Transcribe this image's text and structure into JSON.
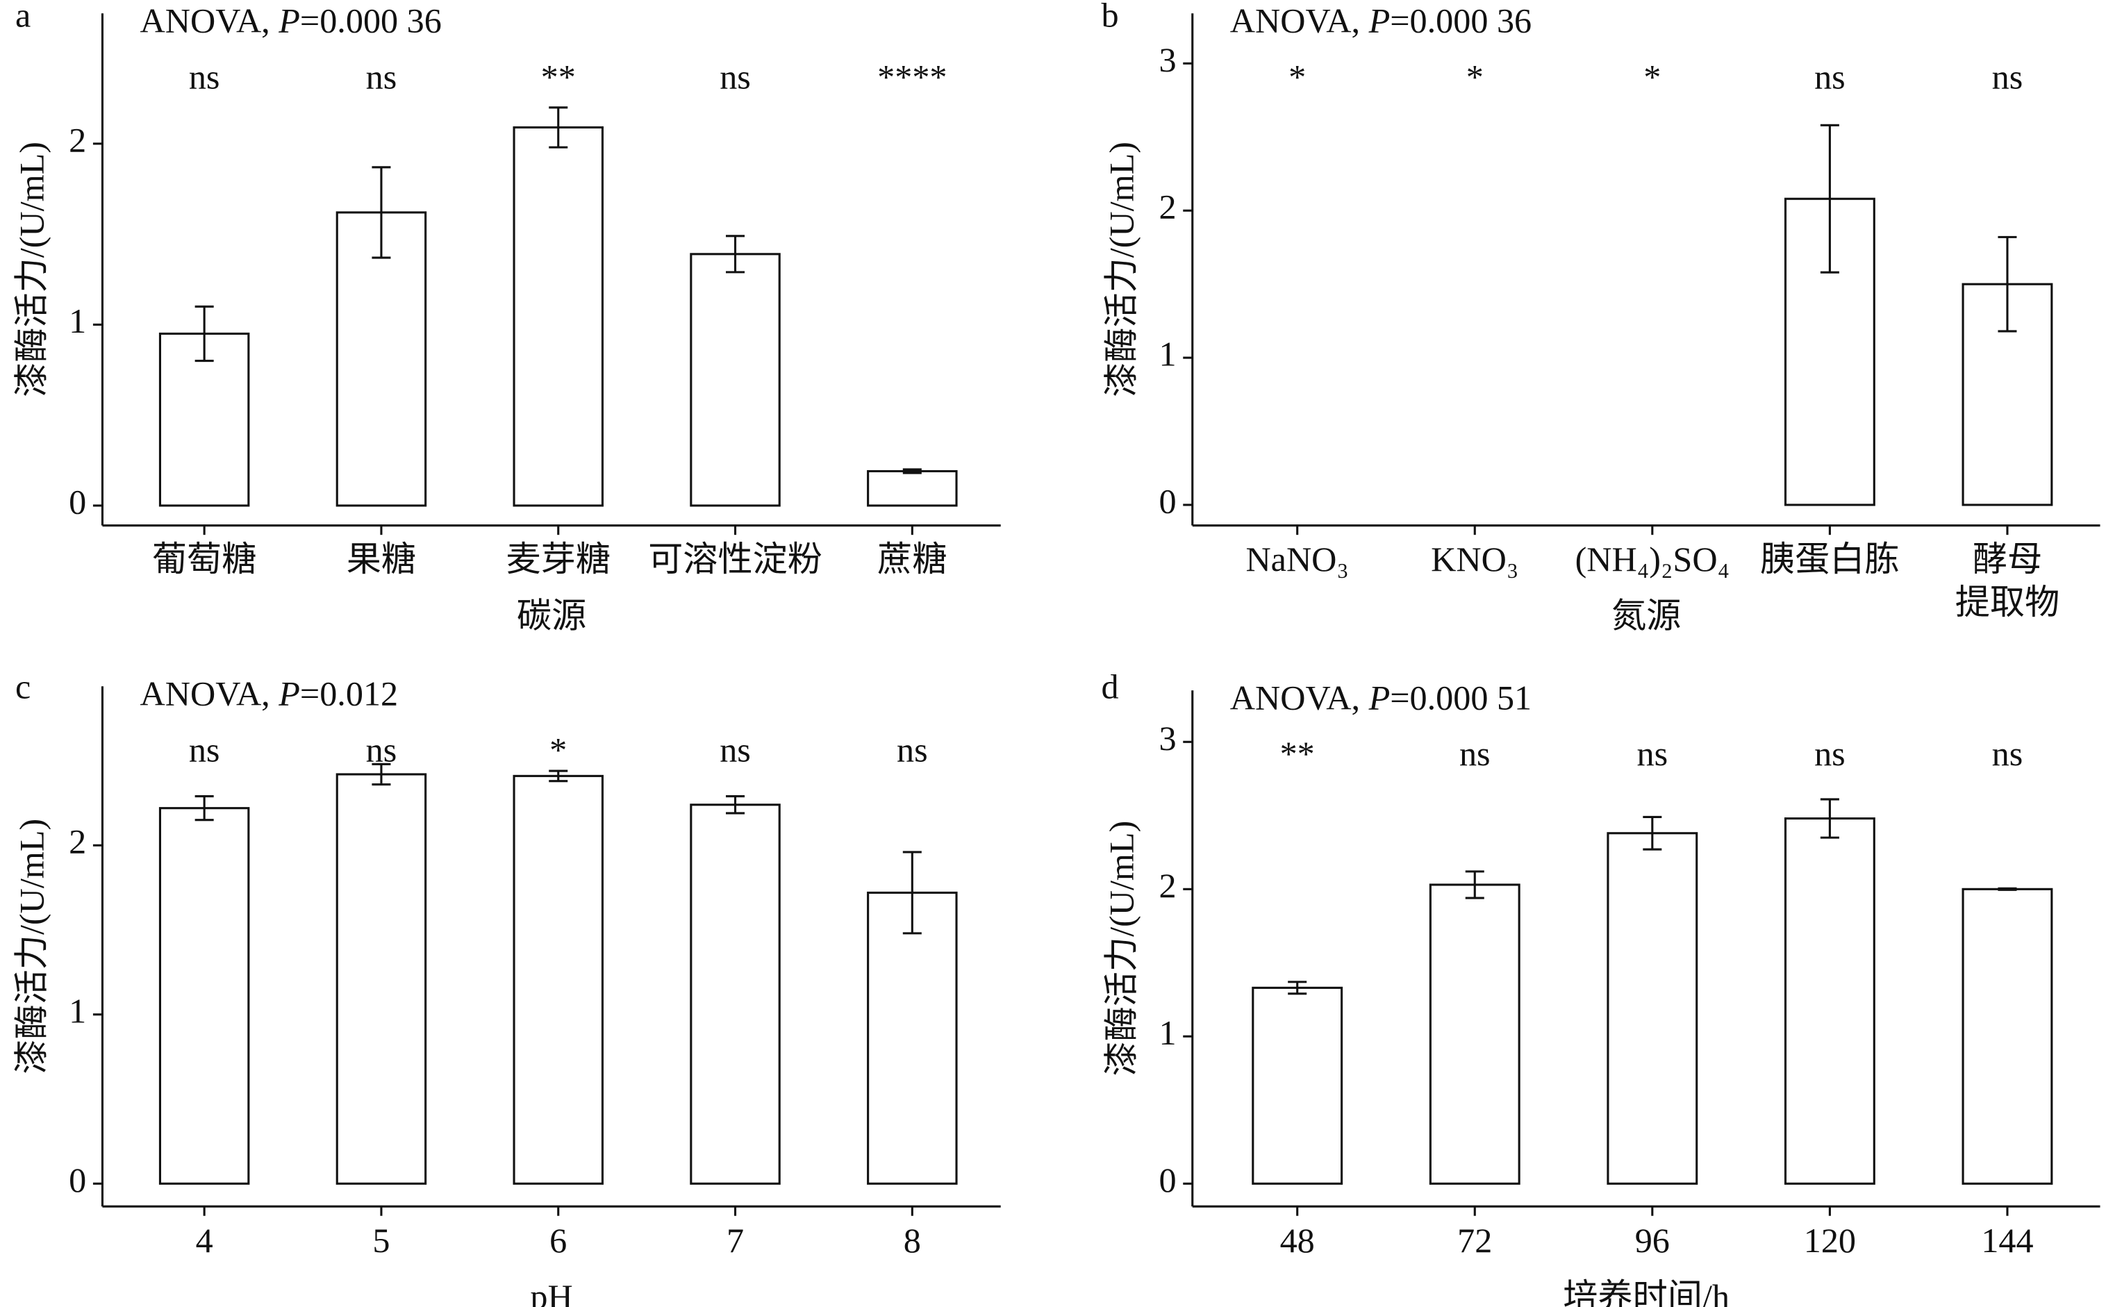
{
  "chart_data": [
    {
      "type": "bar",
      "panel": "a",
      "anova": {
        "label": "ANOVA, ",
        "p": "P",
        "value": "=0.000 36"
      },
      "ylabel": "漆酶活力/(U/mL)",
      "xlabel": "碳源",
      "categories": [
        "葡萄糖",
        "果糖",
        "麦芽糖",
        "可溶性淀粉",
        "蔗糖"
      ],
      "values": [
        0.95,
        1.62,
        2.09,
        1.39,
        0.19
      ],
      "errors": [
        0.15,
        0.25,
        0.11,
        0.1,
        0.01
      ],
      "significance": [
        "ns",
        "ns",
        "**",
        "ns",
        "****"
      ],
      "ylim": [
        -0.11,
        2.72
      ],
      "yticks": [
        0,
        1,
        2
      ],
      "color": "#ffffff"
    },
    {
      "type": "bar",
      "panel": "b",
      "anova": {
        "label": "ANOVA, ",
        "p": "P",
        "value": "=0.000 36"
      },
      "ylabel": "漆酶活力/(U/mL)",
      "xlabel": "氮源",
      "categories": [
        "NaNO₃",
        "KNO₃",
        "(NH₄)₂SO₄",
        "胰蛋白胨",
        [
          "酵母",
          "提取物"
        ]
      ],
      "values": [
        0,
        0,
        0,
        2.08,
        1.5
      ],
      "errors": [
        0,
        0,
        0,
        0.5,
        0.32
      ],
      "significance": [
        "*",
        "*",
        "*",
        "ns",
        "ns"
      ],
      "ylim": [
        -0.14,
        3.34
      ],
      "yticks": [
        0,
        1,
        2,
        3
      ],
      "color": "#ffffff"
    },
    {
      "type": "bar",
      "panel": "c",
      "anova": {
        "label": "ANOVA, ",
        "p": "P",
        "value": "=0.012"
      },
      "ylabel": "漆酶活力/(U/mL)",
      "xlabel": "pH",
      "categories": [
        "4",
        "5",
        "6",
        "7",
        "8"
      ],
      "values": [
        2.22,
        2.42,
        2.41,
        2.24,
        1.72
      ],
      "errors": [
        0.07,
        0.06,
        0.03,
        0.05,
        0.24
      ],
      "significance": [
        "ns",
        "ns",
        "*",
        "ns",
        "ns"
      ],
      "ylim": [
        -0.135,
        2.94
      ],
      "yticks": [
        0,
        1,
        2
      ],
      "color": "#ffffff"
    },
    {
      "type": "bar",
      "panel": "d",
      "anova": {
        "label": "ANOVA, ",
        "p": "P",
        "value": "=0.000 51"
      },
      "ylabel": "漆酶活力/(U/mL)",
      "xlabel": "培养时间/h",
      "categories": [
        "48",
        "72",
        "96",
        "120",
        "144"
      ],
      "values": [
        1.33,
        2.03,
        2.38,
        2.48,
        2.0
      ],
      "errors": [
        0.04,
        0.09,
        0.11,
        0.13,
        0.005
      ],
      "significance": [
        "**",
        "ns",
        "ns",
        "ns",
        "ns"
      ],
      "ylim": [
        -0.155,
        3.35
      ],
      "yticks": [
        0,
        1,
        2,
        3
      ],
      "color": "#ffffff"
    }
  ]
}
